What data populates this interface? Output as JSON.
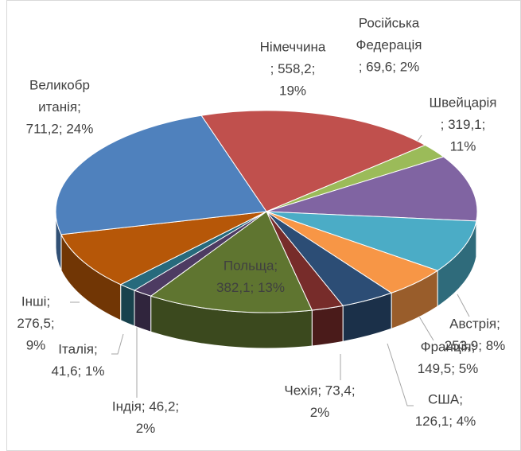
{
  "chart_data": {
    "type": "pie3d",
    "values": [
      558.2,
      69.6,
      319.1,
      253.9,
      149.5,
      126.1,
      73.4,
      382.1,
      46.2,
      41.6,
      276.5,
      711.2
    ],
    "value_labels": [
      [
        "Німеччина",
        "; 558,2;",
        "19%"
      ],
      [
        "Російська",
        "Федерація",
        "; 69,6; 2%"
      ],
      [
        "Швейцарія",
        "; 319,1;",
        "11%"
      ],
      [
        "Австрія;",
        "253,9; 8%"
      ],
      [
        "Франція;",
        "149,5; 5%"
      ],
      [
        "США;",
        "126,1; 4%"
      ],
      [
        "Чехія; 73,4;",
        "2%"
      ],
      [
        "Польща;",
        "382,1; 13%"
      ],
      [
        "Індія; 46,2;",
        "2%"
      ],
      [
        "Італія;",
        "41,6; 1%"
      ],
      [
        "Інші;",
        "276,5;",
        "9%"
      ],
      [
        "Великобр",
        "итанія;",
        "711,2; 24%"
      ]
    ],
    "colors": [
      "#c0504d",
      "#9bbb59",
      "#8064a2",
      "#4bacc6",
      "#f79646",
      "#2c4d75",
      "#772c2a",
      "#5f7530",
      "#4d3b62",
      "#276a7c",
      "#b65708",
      "#4f81bd"
    ]
  }
}
